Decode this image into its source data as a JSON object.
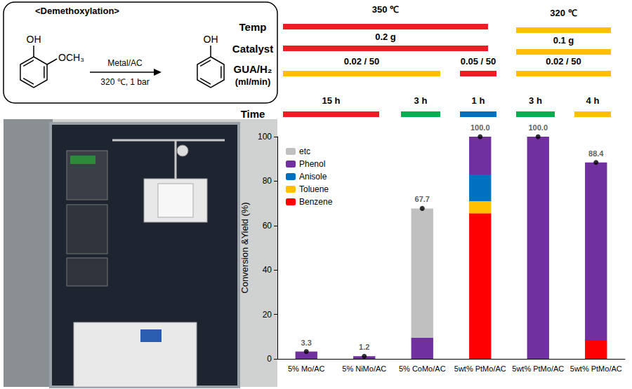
{
  "scheme": {
    "title": "<Demethoxylation>",
    "reactant_labels": [
      "OH",
      "OCH₃"
    ],
    "product_labels": [
      "OH"
    ],
    "reagent": "Metal/AC",
    "conditions": "320 ℃, 1 bar"
  },
  "conditions": [
    {
      "label_lines": [
        "Temp"
      ],
      "bars": [
        {
          "text": "350 ℃",
          "color": "#ee1c25"
        },
        {
          "text": "320 ℃",
          "color": "#ffc000"
        }
      ]
    },
    {
      "label_lines": [
        "Catalyst"
      ],
      "bars": [
        {
          "text": "0.2 g",
          "color": "#ee1c25"
        },
        {
          "text": "0.1 g",
          "color": "#ffc000"
        }
      ]
    },
    {
      "label_lines": [
        "GUA/H₂",
        "(ml/min)"
      ],
      "bars": [
        {
          "text": "0.02 / 50",
          "color": "#ffc000"
        },
        {
          "text": "0.05 / 50",
          "color": "#ee1c25"
        },
        {
          "text": "0.02 / 50",
          "color": "#ffc000"
        }
      ]
    },
    {
      "label_lines": [
        "Time"
      ],
      "bars": [
        {
          "text": "15 h",
          "color": "#ee1c25"
        },
        {
          "text": "3 h",
          "color": "#00b050"
        },
        {
          "text": "1 h",
          "color": "#0070c0"
        },
        {
          "text": "3 h",
          "color": "#00b050"
        },
        {
          "text": "4 h",
          "color": "#ffc000"
        }
      ]
    }
  ],
  "chart_data": {
    "type": "bar",
    "stacked": true,
    "ylabel": "Conversion &Yield (%)",
    "categories": [
      "5% Mo/AC",
      "5% NiMo/AC",
      "5% CoMo/AC",
      "5wt% PtMo/AC",
      "5wt% PtMo/AC",
      "5wt% PtMo/AC"
    ],
    "series": [
      {
        "name": "Benzene",
        "color": "#ff0000",
        "values": [
          0,
          0,
          0,
          65.5,
          0,
          8.5
        ]
      },
      {
        "name": "Toluene",
        "color": "#ffc000",
        "values": [
          0,
          0,
          0,
          5.5,
          0,
          0
        ]
      },
      {
        "name": "Anisole",
        "color": "#0070c0",
        "values": [
          0,
          0,
          0,
          12,
          0,
          0
        ]
      },
      {
        "name": "Phenol",
        "color": "#7030a0",
        "values": [
          3.3,
          1.2,
          9.5,
          17,
          100,
          79.9
        ]
      },
      {
        "name": "etc",
        "color": "#c0c0c0",
        "values": [
          0,
          0,
          58.2,
          0,
          0,
          0
        ]
      }
    ],
    "conversion": {
      "type": "scatter",
      "marker": "circle",
      "color": "#000000",
      "values": [
        3.3,
        1.2,
        67.7,
        100,
        100,
        88.4
      ],
      "value_labels": [
        "3.3",
        "1.2",
        "67.7",
        "100.0",
        "100.0",
        "88.4"
      ]
    },
    "ylim": [
      0,
      100
    ],
    "yticks": [
      0,
      20,
      40,
      60,
      80,
      100
    ],
    "grid": false,
    "legend": "upper left"
  }
}
